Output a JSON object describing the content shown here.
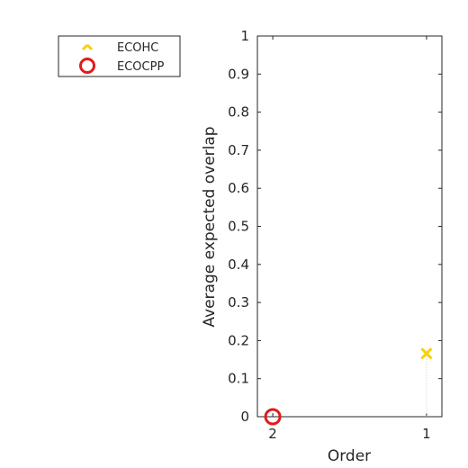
{
  "chart_data": {
    "type": "scatter",
    "xlabel": "Order",
    "ylabel": "Average expected overlap",
    "ylim": [
      0,
      1
    ],
    "yticks": [
      "0",
      "0.1",
      "0.2",
      "0.3",
      "0.4",
      "0.5",
      "0.6",
      "0.7",
      "0.8",
      "0.9",
      "1"
    ],
    "xticks": [
      "2",
      "1"
    ],
    "x_direction": "reversed",
    "xlim": [
      2.1,
      0.9
    ],
    "grid": false,
    "legend": "top-left",
    "series": [
      {
        "name": "ECOHC",
        "marker": "x",
        "color": "#f5d10f",
        "x": 1,
        "y": 0.166
      },
      {
        "name": "ECOCPP",
        "marker": "circle",
        "color": "#e31a1c",
        "x": 2,
        "y": 0.0
      }
    ]
  }
}
